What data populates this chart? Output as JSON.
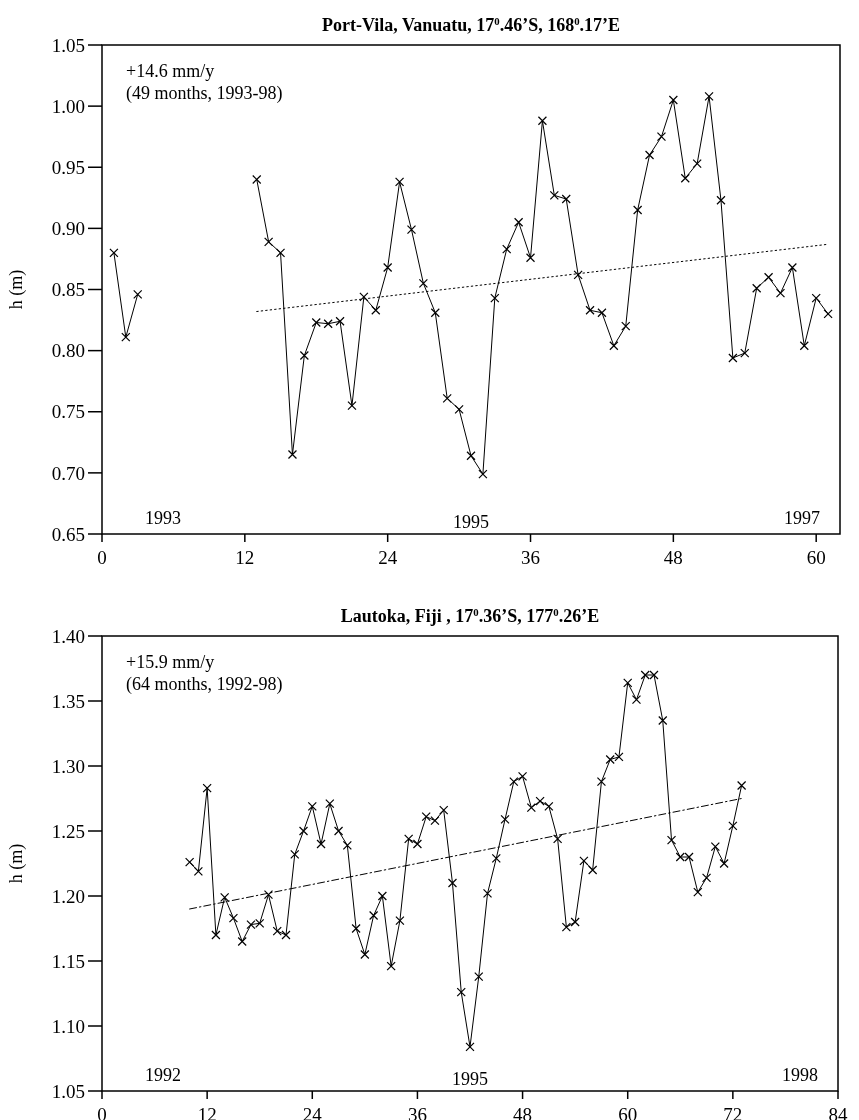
{
  "chart_data": [
    {
      "type": "line",
      "title": "Port-Vila, Vanuatu, 17$^{0}$.46’S, 168$^{0}$.17’E",
      "ylabel": "h (m)",
      "xlim": [
        0,
        62
      ],
      "xticks": [
        0,
        12,
        24,
        36,
        48,
        60
      ],
      "ylim": [
        0.65,
        1.05
      ],
      "yticks": [
        {
          "value": 0.65,
          "label": "0.65"
        },
        {
          "value": 0.7,
          "label": "0.70"
        },
        {
          "value": 0.75,
          "label": "0.75"
        },
        {
          "value": 0.8,
          "label": "0.80"
        },
        {
          "value": 0.85,
          "label": "0.85"
        },
        {
          "value": 0.9,
          "label": "0.90"
        },
        {
          "value": 0.95,
          "label": "0.95"
        },
        {
          "value": 1.0,
          "label": "1.00"
        },
        {
          "value": 1.05,
          "label": "1.05"
        }
      ],
      "marker": "cross",
      "line_style": "solid",
      "annotations": [
        "+14.6 mm/y",
        "(49 months, 1993-98)",
        "1993",
        "1995",
        "1997"
      ],
      "series": [
        {
          "color": "#000000",
          "x": [
            1,
            2,
            3,
            4,
            5,
            6,
            7,
            8,
            9,
            10,
            11,
            12,
            13,
            14,
            15,
            16,
            17,
            18,
            19,
            20,
            21,
            22,
            23,
            24,
            25,
            26,
            27,
            28,
            29,
            30,
            31,
            32,
            33,
            34,
            35,
            36,
            37,
            38,
            39,
            40,
            41,
            42,
            43,
            44,
            45,
            46,
            47,
            48,
            49,
            50,
            51,
            52,
            53,
            54,
            55,
            56,
            57,
            58,
            59,
            60,
            61
          ],
          "values": [
            0.88,
            0.811,
            0.846,
            null,
            null,
            null,
            null,
            null,
            null,
            null,
            null,
            null,
            0.94,
            0.889,
            0.88,
            0.715,
            0.796,
            0.823,
            0.822,
            0.824,
            0.755,
            0.844,
            0.833,
            0.868,
            0.938,
            0.899,
            0.855,
            0.831,
            0.761,
            0.752,
            0.714,
            0.699,
            0.843,
            0.883,
            0.905,
            0.876,
            0.988,
            0.927,
            0.924,
            0.862,
            0.833,
            0.831,
            0.804,
            0.82,
            0.915,
            0.96,
            0.975,
            1.005,
            0.941,
            0.953,
            1.008,
            0.923,
            0.794,
            0.798,
            0.851,
            0.86,
            0.847,
            0.868,
            0.804,
            0.843,
            0.83
          ]
        },
        {
          "type": "line",
          "color": "#000000",
          "marker": "none",
          "line_style": "dotted",
          "x": [
            13,
            61
          ],
          "values": [
            0.832,
            0.887
          ]
        }
      ]
    },
    {
      "type": "line",
      "title": "Lautoka, Fiji , 17$^{0}$.36’S, 177$^{0}$.26’E",
      "ylabel": "h (m)",
      "xlim": [
        0,
        84
      ],
      "xticks": [
        0,
        12,
        24,
        36,
        48,
        60,
        72,
        84
      ],
      "ylim": [
        1.05,
        1.4
      ],
      "yticks": [
        {
          "value": 1.05,
          "label": "1.05"
        },
        {
          "value": 1.1,
          "label": "1.10"
        },
        {
          "value": 1.15,
          "label": "1.15"
        },
        {
          "value": 1.2,
          "label": "1.20"
        },
        {
          "value": 1.25,
          "label": "1.25"
        },
        {
          "value": 1.3,
          "label": "1.30"
        },
        {
          "value": 1.35,
          "label": "1.35"
        },
        {
          "value": 1.4,
          "label": "1.40"
        }
      ],
      "marker": "cross",
      "line_style": "solid",
      "annotations": [
        "+15.9 mm/y",
        "(64 months, 1992-98)",
        "1992",
        "1995",
        "1998"
      ],
      "series": [
        {
          "color": "#000000",
          "x": [
            10,
            11,
            12,
            13,
            14,
            15,
            16,
            17,
            18,
            19,
            20,
            21,
            22,
            23,
            24,
            25,
            26,
            27,
            28,
            29,
            30,
            31,
            32,
            33,
            34,
            35,
            36,
            37,
            38,
            39,
            40,
            41,
            42,
            43,
            44,
            45,
            46,
            47,
            48,
            49,
            50,
            51,
            52,
            53,
            54,
            55,
            56,
            57,
            58,
            59,
            60,
            61,
            62,
            63,
            64,
            65,
            66,
            67,
            68,
            69,
            70,
            71,
            72,
            73
          ],
          "values": [
            1.226,
            1.219,
            1.283,
            1.17,
            1.199,
            1.183,
            1.165,
            1.178,
            1.179,
            1.201,
            1.173,
            1.17,
            1.232,
            1.25,
            1.269,
            1.24,
            1.271,
            1.25,
            1.239,
            1.175,
            1.155,
            1.185,
            1.2,
            1.146,
            1.181,
            1.244,
            1.24,
            1.261,
            1.258,
            1.266,
            1.21,
            1.126,
            1.084,
            1.138,
            1.202,
            1.229,
            1.259,
            1.288,
            1.292,
            1.268,
            1.273,
            1.269,
            1.244,
            1.176,
            1.18,
            1.227,
            1.22,
            1.288,
            1.305,
            1.307,
            1.364,
            1.351,
            1.37,
            1.37,
            1.335,
            1.243,
            1.23,
            1.23,
            1.203,
            1.214,
            1.238,
            1.225,
            1.254,
            1.285
          ]
        },
        {
          "type": "line",
          "color": "#000000",
          "marker": "none",
          "line_style": "dashed",
          "x": [
            10,
            73
          ],
          "values": [
            1.19,
            1.275
          ]
        }
      ]
    }
  ]
}
